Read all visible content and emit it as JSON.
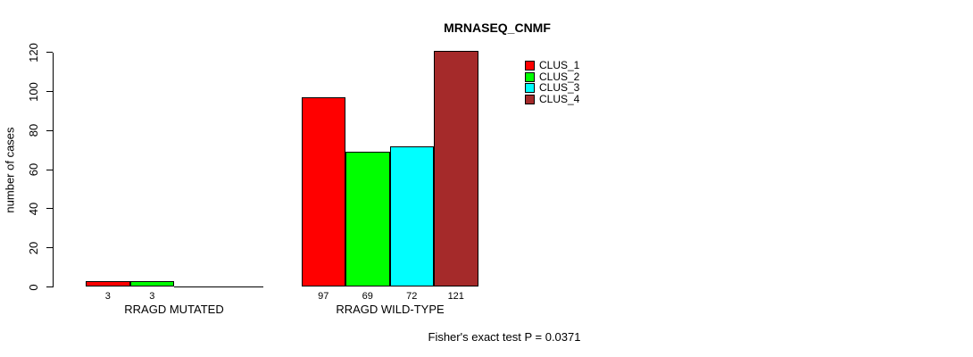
{
  "page": {
    "background_color": "#ffffff",
    "text_color": "#000000"
  },
  "chart_data": {
    "type": "bar",
    "title": "MRNASEQ_CNMF",
    "xlabel": "",
    "ylabel": "number of cases",
    "groups": [
      "RRAGD MUTATED",
      "RRAGD WILD-TYPE"
    ],
    "series": [
      {
        "name": "CLUS_1",
        "color": "#ff0000",
        "values": [
          3,
          97
        ]
      },
      {
        "name": "CLUS_2",
        "color": "#00ff00",
        "values": [
          3,
          69
        ]
      },
      {
        "name": "CLUS_3",
        "color": "#00ffff",
        "values": [
          0,
          72
        ]
      },
      {
        "name": "CLUS_4",
        "color": "#a52a2a",
        "values": [
          0,
          121
        ]
      }
    ],
    "bar_value_labels_shown": true,
    "zero_values_drawn_as_flat_line": true,
    "yticks": [
      0,
      20,
      40,
      60,
      80,
      100,
      120
    ],
    "ylim": [
      0,
      120
    ],
    "grid": false,
    "legend_position": "top-right-inside",
    "axis_color": "#000000",
    "bar_border_color": "#000000",
    "annotation": "Fisher's exact test P = 0.0371"
  }
}
